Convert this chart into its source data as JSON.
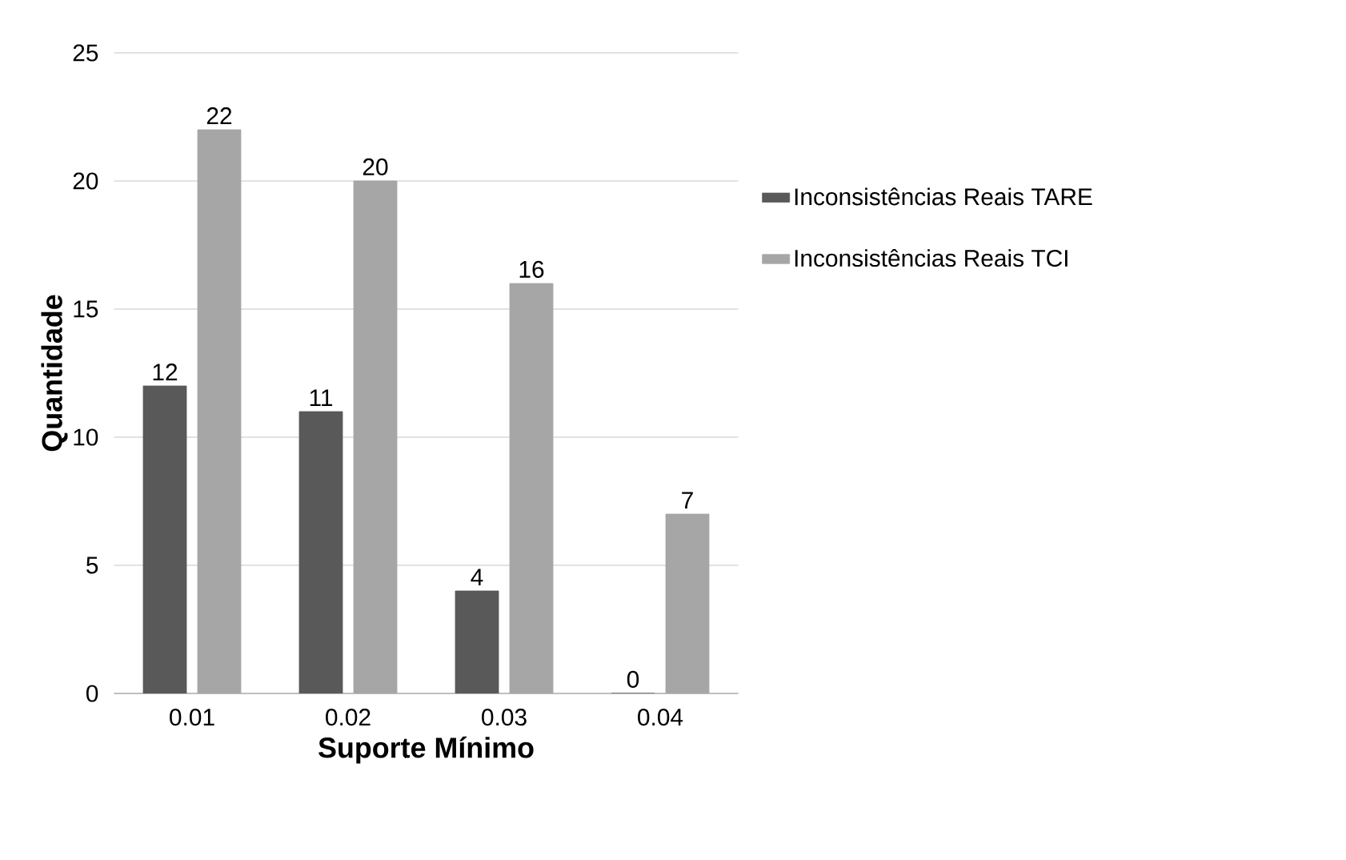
{
  "chart_data": {
    "type": "bar",
    "xlabel": "Suporte Mínimo",
    "ylabel": "Quantidade",
    "categories": [
      "0.01",
      "0.02",
      "0.03",
      "0.04"
    ],
    "series": [
      {
        "name": "Inconsistências Reais TARE",
        "color": "#595959",
        "values": [
          12,
          11,
          4,
          0
        ]
      },
      {
        "name": "Inconsistências Reais TCI",
        "color": "#a6a6a6",
        "values": [
          22,
          20,
          16,
          7
        ]
      }
    ],
    "ylim": [
      0,
      25
    ],
    "yticks": [
      0,
      5,
      10,
      15,
      20,
      25
    ],
    "grid": "y",
    "legend": "right",
    "data_labels": true
  }
}
